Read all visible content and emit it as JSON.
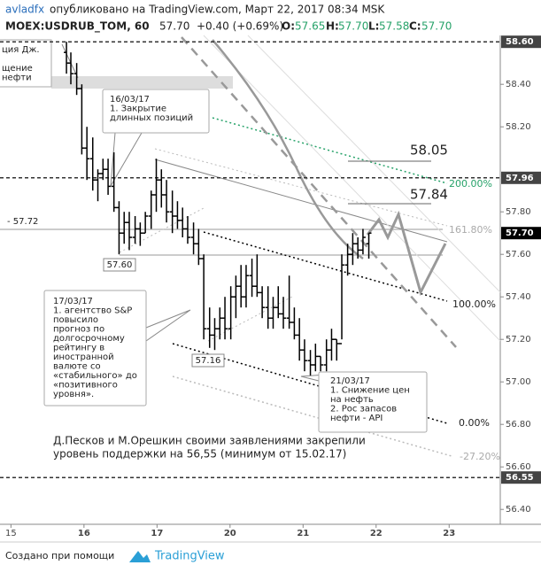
{
  "chart_data": {
    "type": "ohlc",
    "header": {
      "author": "avladfx",
      "published": "опубликовано на TradingView.com, Март 22, 2017 08:34 MSK",
      "symbol": "MOEX:USDRUB_TOM, 60",
      "last": "57.70",
      "change": "+0.40 (+0.69%)",
      "o_label": "O:",
      "o": "57.65",
      "h_label": "H:",
      "h": "57.70",
      "l_label": "L:",
      "l": "57.58",
      "c_label": "C:",
      "c": "57.70"
    },
    "xlim": [
      -0.15,
      6.7
    ],
    "xticks": [
      {
        "value": 0,
        "label": "15"
      },
      {
        "value": 1,
        "label": "16"
      },
      {
        "value": 2,
        "label": "17"
      },
      {
        "value": 3,
        "label": "20"
      },
      {
        "value": 4,
        "label": "21"
      },
      {
        "value": 5,
        "label": "22"
      },
      {
        "value": 6,
        "label": "23"
      }
    ],
    "ylim": [
      56.33,
      58.63
    ],
    "yticks": [
      {
        "value": 58.4,
        "label": "58.40"
      },
      {
        "value": 58.2,
        "label": "58.20"
      },
      {
        "value": 57.8,
        "label": "57.80"
      },
      {
        "value": 57.6,
        "label": "57.60"
      },
      {
        "value": 57.4,
        "label": "57.40"
      },
      {
        "value": 57.2,
        "label": "57.20"
      },
      {
        "value": 57.0,
        "label": "57.00"
      },
      {
        "value": 56.8,
        "label": "56.80"
      },
      {
        "value": 56.6,
        "label": "56.60"
      },
      {
        "value": 56.4,
        "label": "56.40"
      }
    ],
    "levels": [
      {
        "value": 58.6,
        "label": "58.60"
      },
      {
        "value": 57.96,
        "label": "57.96"
      },
      {
        "value": 56.55,
        "label": "56.55"
      }
    ],
    "last_price": {
      "value": 57.7,
      "label": "57.70"
    },
    "color": "#000000",
    "bars": [
      {
        "x": 0.76,
        "o": 58.55,
        "h": 58.6,
        "l": 58.45,
        "c": 58.5
      },
      {
        "x": 0.82,
        "o": 58.5,
        "h": 58.55,
        "l": 58.4,
        "c": 58.45
      },
      {
        "x": 0.9,
        "o": 58.45,
        "h": 58.5,
        "l": 58.35,
        "c": 58.38
      },
      {
        "x": 0.97,
        "o": 58.38,
        "h": 58.4,
        "l": 58.07,
        "c": 58.1
      },
      {
        "x": 1.04,
        "o": 58.1,
        "h": 58.2,
        "l": 57.95,
        "c": 58.05
      },
      {
        "x": 1.12,
        "o": 58.05,
        "h": 58.15,
        "l": 57.9,
        "c": 57.95
      },
      {
        "x": 1.19,
        "o": 57.95,
        "h": 58.0,
        "l": 57.85,
        "c": 57.98
      },
      {
        "x": 1.26,
        "o": 57.98,
        "h": 58.05,
        "l": 57.95,
        "c": 58.0
      },
      {
        "x": 1.33,
        "o": 58.0,
        "h": 58.05,
        "l": 57.88,
        "c": 57.92
      },
      {
        "x": 1.41,
        "o": 57.92,
        "h": 58.08,
        "l": 57.8,
        "c": 57.82
      },
      {
        "x": 1.48,
        "o": 57.82,
        "h": 57.85,
        "l": 57.6,
        "c": 57.7
      },
      {
        "x": 1.55,
        "o": 57.7,
        "h": 57.8,
        "l": 57.65,
        "c": 57.75
      },
      {
        "x": 1.62,
        "o": 57.75,
        "h": 57.8,
        "l": 57.62,
        "c": 57.68
      },
      {
        "x": 1.7,
        "o": 57.68,
        "h": 57.78,
        "l": 57.65,
        "c": 57.72
      },
      {
        "x": 1.77,
        "o": 57.72,
        "h": 57.75,
        "l": 57.64,
        "c": 57.7
      },
      {
        "x": 1.84,
        "o": 57.7,
        "h": 57.8,
        "l": 57.7,
        "c": 57.78
      },
      {
        "x": 1.92,
        "o": 57.78,
        "h": 57.9,
        "l": 57.72,
        "c": 57.88
      },
      {
        "x": 1.99,
        "o": 57.88,
        "h": 58.05,
        "l": 57.8,
        "c": 57.95
      },
      {
        "x": 2.06,
        "o": 57.95,
        "h": 58.0,
        "l": 57.82,
        "c": 57.88
      },
      {
        "x": 2.13,
        "o": 57.88,
        "h": 57.95,
        "l": 57.75,
        "c": 57.8
      },
      {
        "x": 2.21,
        "o": 57.8,
        "h": 57.9,
        "l": 57.7,
        "c": 57.78
      },
      {
        "x": 2.28,
        "o": 57.78,
        "h": 57.85,
        "l": 57.72,
        "c": 57.76
      },
      {
        "x": 2.35,
        "o": 57.76,
        "h": 57.82,
        "l": 57.68,
        "c": 57.72
      },
      {
        "x": 2.42,
        "o": 57.72,
        "h": 57.78,
        "l": 57.65,
        "c": 57.68
      },
      {
        "x": 2.5,
        "o": 57.68,
        "h": 57.75,
        "l": 57.6,
        "c": 57.65
      },
      {
        "x": 2.57,
        "o": 57.65,
        "h": 57.72,
        "l": 57.55,
        "c": 57.58
      },
      {
        "x": 2.64,
        "o": 57.58,
        "h": 57.6,
        "l": 57.2,
        "c": 57.25
      },
      {
        "x": 2.72,
        "o": 57.25,
        "h": 57.35,
        "l": 57.16,
        "c": 57.22
      },
      {
        "x": 2.79,
        "o": 57.22,
        "h": 57.3,
        "l": 57.15,
        "c": 57.25
      },
      {
        "x": 2.86,
        "o": 57.25,
        "h": 57.35,
        "l": 57.2,
        "c": 57.3
      },
      {
        "x": 2.93,
        "o": 57.3,
        "h": 57.4,
        "l": 57.2,
        "c": 57.25
      },
      {
        "x": 3.01,
        "o": 57.25,
        "h": 57.45,
        "l": 57.2,
        "c": 57.4
      },
      {
        "x": 3.08,
        "o": 57.4,
        "h": 57.5,
        "l": 57.3,
        "c": 57.45
      },
      {
        "x": 3.15,
        "o": 57.45,
        "h": 57.55,
        "l": 57.35,
        "c": 57.4
      },
      {
        "x": 3.22,
        "o": 57.4,
        "h": 57.55,
        "l": 57.35,
        "c": 57.5
      },
      {
        "x": 3.3,
        "o": 57.5,
        "h": 57.58,
        "l": 57.4,
        "c": 57.45
      },
      {
        "x": 3.37,
        "o": 57.45,
        "h": 57.6,
        "l": 57.4,
        "c": 57.42
      },
      {
        "x": 3.44,
        "o": 57.42,
        "h": 57.45,
        "l": 57.3,
        "c": 57.35
      },
      {
        "x": 3.52,
        "o": 57.35,
        "h": 57.45,
        "l": 57.25,
        "c": 57.3
      },
      {
        "x": 3.59,
        "o": 57.3,
        "h": 57.4,
        "l": 57.25,
        "c": 57.35
      },
      {
        "x": 3.66,
        "o": 57.35,
        "h": 57.45,
        "l": 57.3,
        "c": 57.32
      },
      {
        "x": 3.73,
        "o": 57.32,
        "h": 57.4,
        "l": 57.25,
        "c": 57.3
      },
      {
        "x": 3.81,
        "o": 57.3,
        "h": 57.5,
        "l": 57.25,
        "c": 57.28
      },
      {
        "x": 3.88,
        "o": 57.28,
        "h": 57.35,
        "l": 57.2,
        "c": 57.22
      },
      {
        "x": 3.95,
        "o": 57.22,
        "h": 57.3,
        "l": 57.1,
        "c": 57.15
      },
      {
        "x": 4.02,
        "o": 57.15,
        "h": 57.2,
        "l": 57.05,
        "c": 57.1
      },
      {
        "x": 4.1,
        "o": 57.1,
        "h": 57.15,
        "l": 57.03,
        "c": 57.08
      },
      {
        "x": 4.17,
        "o": 57.08,
        "h": 57.18,
        "l": 57.05,
        "c": 57.12
      },
      {
        "x": 4.24,
        "o": 57.12,
        "h": 57.12,
        "l": 57.05,
        "c": 57.08
      },
      {
        "x": 4.32,
        "o": 57.08,
        "h": 57.2,
        "l": 57.05,
        "c": 57.15
      },
      {
        "x": 4.39,
        "o": 57.15,
        "h": 57.25,
        "l": 57.1,
        "c": 57.2
      },
      {
        "x": 4.46,
        "o": 57.2,
        "h": 57.2,
        "l": 57.1,
        "c": 57.18
      },
      {
        "x": 4.53,
        "o": 57.18,
        "h": 57.6,
        "l": 57.2,
        "c": 57.55
      },
      {
        "x": 4.61,
        "o": 57.55,
        "h": 57.65,
        "l": 57.5,
        "c": 57.6
      },
      {
        "x": 4.68,
        "o": 57.6,
        "h": 57.7,
        "l": 57.55,
        "c": 57.65
      },
      {
        "x": 4.75,
        "o": 57.65,
        "h": 57.68,
        "l": 57.58,
        "c": 57.62
      },
      {
        "x": 4.82,
        "o": 57.62,
        "h": 57.72,
        "l": 57.6,
        "c": 57.68
      },
      {
        "x": 4.9,
        "o": 57.65,
        "h": 57.7,
        "l": 57.58,
        "c": 57.7
      }
    ],
    "labels": {
      "p58_05": "58.05",
      "p57_84": "57.84",
      "f200": "200.00%",
      "f161": "161.80%",
      "f100": "100.00%",
      "f0": "0.00%",
      "fneg": "-27.20%",
      "low1": "57.60",
      "low2": "57.16",
      "line5772": "- 57.72"
    },
    "notes": {
      "n0": [
        "ция Дж.",
        "",
        "щение",
        "нефти"
      ],
      "n1": [
        "16/03/17",
        "1. Закрытие",
        "длинных позиций"
      ],
      "n2": [
        "17/03/17",
        "1. агентство S&P",
        "повысило",
        "прогноз по",
        "долгосрочному",
        "рейтингу в",
        "иностранной",
        "валюте со",
        "«стабильного» до",
        "«позитивного",
        "уровня»."
      ],
      "n3": [
        "21/03/17",
        "1. Снижение цен",
        "на нефть",
        "2. Рос запасов",
        "нефти - API"
      ],
      "n4": [
        "Д.Песков и М.Орешкин своими заявлениями закрепили",
        "уровень поддержки на 56,55 (минимум от 15.02.17)"
      ]
    },
    "footer": {
      "made": "Создано при помощи",
      "brand": "TradingView"
    }
  }
}
